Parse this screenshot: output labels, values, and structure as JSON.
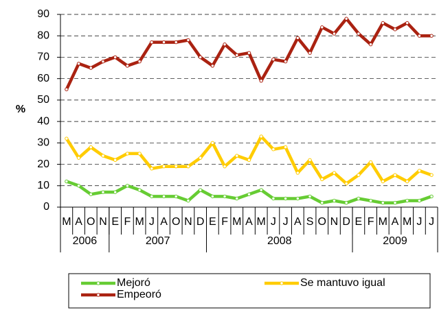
{
  "chart_data": {
    "type": "line",
    "y_label": "%",
    "categories": [
      "M",
      "A",
      "O",
      "N",
      "E",
      "F",
      "M",
      "J",
      "A",
      "O",
      "N",
      "D",
      "E",
      "F",
      "M",
      "A",
      "M",
      "J",
      "J",
      "A",
      "S",
      "O",
      "N",
      "D",
      "E",
      "F",
      "M",
      "A",
      "M",
      "J",
      "J"
    ],
    "year_groups": [
      "2006",
      "2007",
      "2008",
      "2009"
    ],
    "series": [
      {
        "name": "Mejoró",
        "color": "#66cc33",
        "values": [
          12,
          10,
          6,
          7,
          7,
          10,
          8,
          5,
          5,
          5,
          3,
          8,
          5,
          5,
          4,
          6,
          8,
          4,
          4,
          4,
          5,
          2,
          3,
          2,
          4,
          3,
          2,
          2,
          3,
          3,
          5
        ]
      },
      {
        "name": "Se mantuvo igual",
        "color": "#ffcc00",
        "values": [
          32,
          23,
          28,
          24,
          22,
          25,
          25,
          18,
          19,
          19,
          19,
          23,
          30,
          19,
          24,
          22,
          33,
          27,
          28,
          16,
          22,
          13,
          16,
          11,
          15,
          21,
          12,
          15,
          12,
          17,
          15
        ]
      },
      {
        "name": "Empeoró",
        "color": "#aa2211",
        "values": [
          55,
          67,
          65,
          68,
          70,
          66,
          68,
          77,
          77,
          77,
          78,
          70,
          66,
          76,
          71,
          72,
          59,
          69,
          68,
          79,
          72,
          84,
          81,
          88,
          81,
          76,
          86,
          83,
          86,
          80,
          80
        ]
      }
    ],
    "ylim": [
      0,
      90
    ],
    "yticks": [
      0,
      10,
      20,
      30,
      40,
      50,
      60,
      70,
      80,
      90
    ],
    "grid": true
  }
}
